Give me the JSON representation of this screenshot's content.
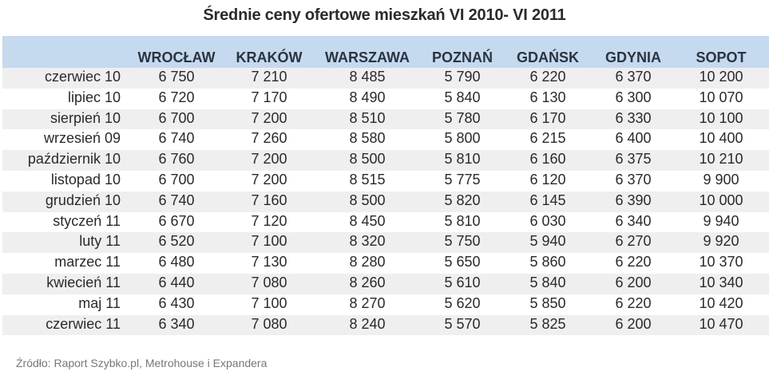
{
  "title": "Średnie ceny ofertowe mieszkań VI 2010- VI 2011",
  "columns": [
    "WROCŁAW",
    "KRAKÓW",
    "WARSZAWA",
    "POZNAŃ",
    "GDAŃSK",
    "GDYNIA",
    "SOPOT"
  ],
  "rows": [
    {
      "label": "czerwiec 10",
      "values": [
        "6 750",
        "7 210",
        "8 485",
        "5 790",
        "6 220",
        "6 370",
        "10 200"
      ]
    },
    {
      "label": "lipiec 10",
      "values": [
        "6 720",
        "7 170",
        "8 490",
        "5 840",
        "6 130",
        "6 300",
        "10 070"
      ]
    },
    {
      "label": "sierpień 10",
      "values": [
        "6 700",
        "7 200",
        "8 510",
        "5 780",
        "6 170",
        "6 330",
        "10 100"
      ]
    },
    {
      "label": "wrzesień 09",
      "values": [
        "6 740",
        "7 260",
        "8 580",
        "5 800",
        "6 215",
        "6 400",
        "10 400"
      ]
    },
    {
      "label": "październik 10",
      "values": [
        "6 760",
        "7 200",
        "8 500",
        "5 810",
        "6 160",
        "6 375",
        "10 210"
      ]
    },
    {
      "label": "listopad 10",
      "values": [
        "6 700",
        "7 200",
        "8 515",
        "5 775",
        "6 120",
        "6 370",
        "9 900"
      ]
    },
    {
      "label": "grudzień 10",
      "values": [
        "6 740",
        "7 160",
        "8 500",
        "5 820",
        "6 145",
        "6 390",
        "10 000"
      ]
    },
    {
      "label": "styczeń 11",
      "values": [
        "6 670",
        "7 120",
        "8 450",
        "5 810",
        "6 030",
        "6 340",
        "9 940"
      ]
    },
    {
      "label": "luty 11",
      "values": [
        "6 520",
        "7 100",
        "8 320",
        "5 750",
        "5 940",
        "6 270",
        "9 920"
      ]
    },
    {
      "label": "marzec 11",
      "values": [
        "6 480",
        "7 130",
        "8 280",
        "5 650",
        "5 860",
        "6 220",
        "10 370"
      ]
    },
    {
      "label": "kwiecień 11",
      "values": [
        "6 440",
        "7 080",
        "8 260",
        "5 610",
        "5 840",
        "6 200",
        "10 340"
      ]
    },
    {
      "label": "maj 11",
      "values": [
        "6 430",
        "7 100",
        "8 270",
        "5 620",
        "5 850",
        "6 220",
        "10 420"
      ]
    },
    {
      "label": "czerwiec 11",
      "values": [
        "6 340",
        "7 080",
        "8 240",
        "5 570",
        "5 825",
        "6 200",
        "10 470"
      ]
    }
  ],
  "source": "Źródło: Raport Szybko.pl, Metrohouse i Expandera",
  "colors": {
    "header_bg": "#c5d9ef",
    "stripe_bg": "#efefef",
    "source_text": "#777777"
  }
}
